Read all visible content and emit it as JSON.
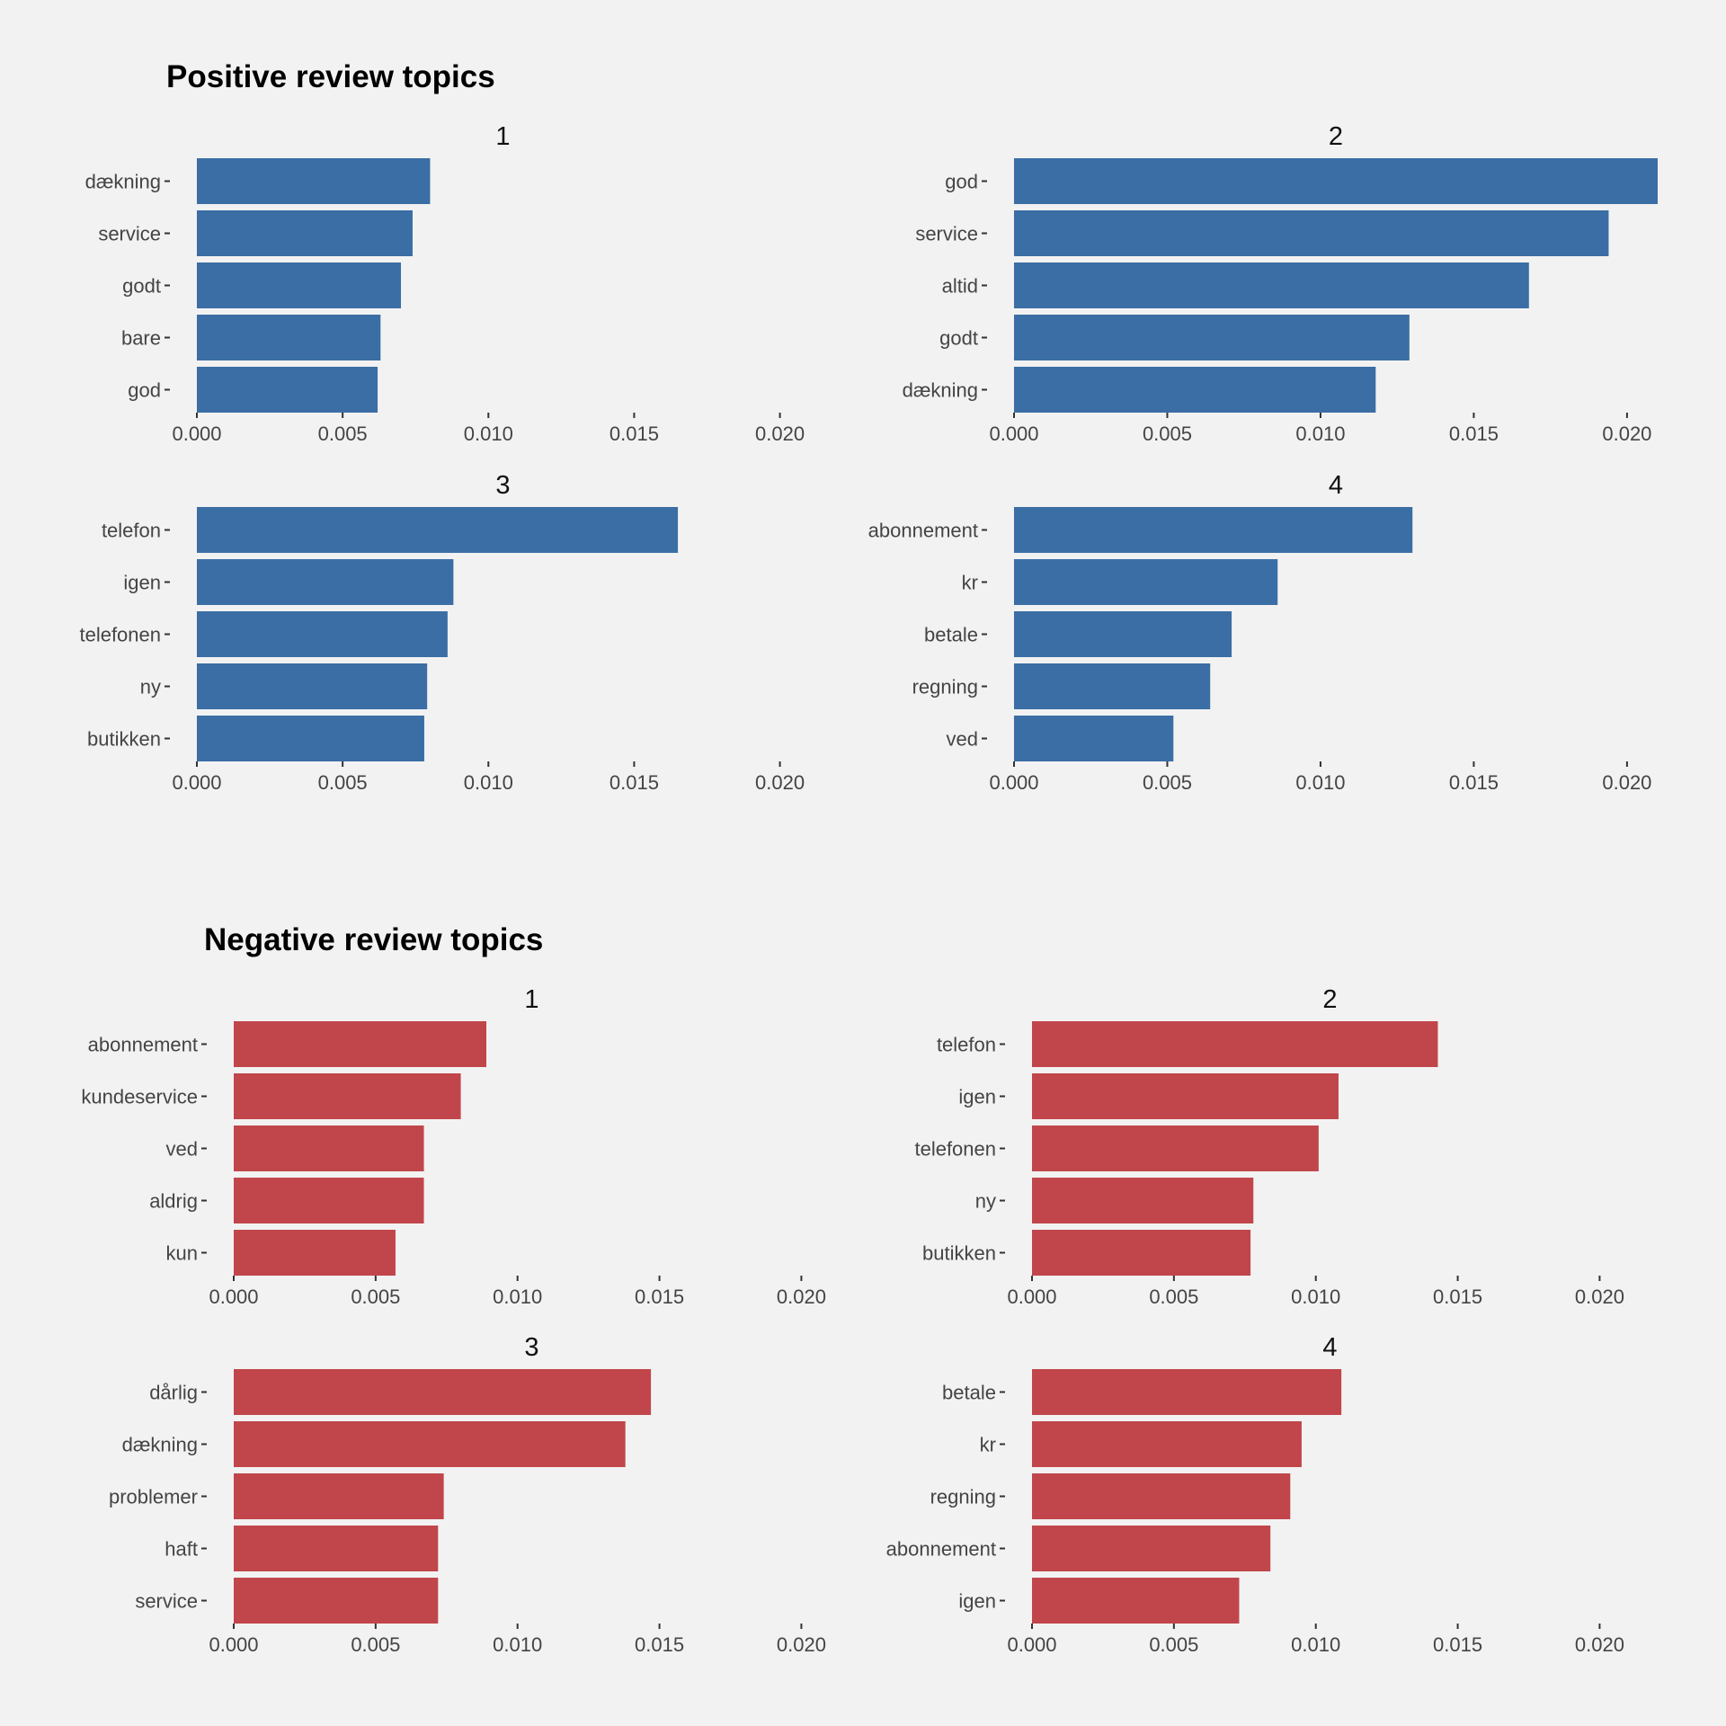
{
  "chart_data": [
    {
      "title": "Positive review topics",
      "type": "bar",
      "orientation": "horizontal",
      "color": "#3a6ea5",
      "xlim": [
        0,
        0.021
      ],
      "xticks": [
        "0.000",
        "0.005",
        "0.010",
        "0.015",
        "0.020"
      ],
      "grid": false,
      "panels": [
        {
          "name": "1",
          "categories": [
            "dækning",
            "service",
            "godt",
            "bare",
            "god"
          ],
          "values": [
            0.008,
            0.0074,
            0.007,
            0.0063,
            0.0062
          ]
        },
        {
          "name": "2",
          "categories": [
            "god",
            "service",
            "altid",
            "godt",
            "dækning"
          ],
          "values": [
            0.021,
            0.0194,
            0.0168,
            0.0129,
            0.0118
          ]
        },
        {
          "name": "3",
          "categories": [
            "telefon",
            "igen",
            "telefonen",
            "ny",
            "butikken"
          ],
          "values": [
            0.0165,
            0.0088,
            0.0086,
            0.0079,
            0.0078
          ]
        },
        {
          "name": "4",
          "categories": [
            "abonnement",
            "kr",
            "betale",
            "regning",
            "ved"
          ],
          "values": [
            0.013,
            0.0086,
            0.0071,
            0.0064,
            0.0052
          ]
        }
      ]
    },
    {
      "title": "Negative review topics",
      "type": "bar",
      "orientation": "horizontal",
      "color": "#c1464b",
      "xlim": [
        0,
        0.021
      ],
      "xticks": [
        "0.000",
        "0.005",
        "0.010",
        "0.015",
        "0.020"
      ],
      "grid": false,
      "panels": [
        {
          "name": "1",
          "categories": [
            "abonnement",
            "kundeservice",
            "ved",
            "aldrig",
            "kun"
          ],
          "values": [
            0.0089,
            0.008,
            0.0067,
            0.0067,
            0.0057
          ]
        },
        {
          "name": "2",
          "categories": [
            "telefon",
            "igen",
            "telefonen",
            "ny",
            "butikken"
          ],
          "values": [
            0.0143,
            0.0108,
            0.0101,
            0.0078,
            0.0077
          ]
        },
        {
          "name": "3",
          "categories": [
            "dårlig",
            "dækning",
            "problemer",
            "haft",
            "service"
          ],
          "values": [
            0.0147,
            0.0138,
            0.0074,
            0.0072,
            0.0072
          ]
        },
        {
          "name": "4",
          "categories": [
            "betale",
            "kr",
            "regning",
            "abonnement",
            "igen"
          ],
          "values": [
            0.0109,
            0.0095,
            0.0091,
            0.0084,
            0.0073
          ]
        }
      ]
    }
  ]
}
